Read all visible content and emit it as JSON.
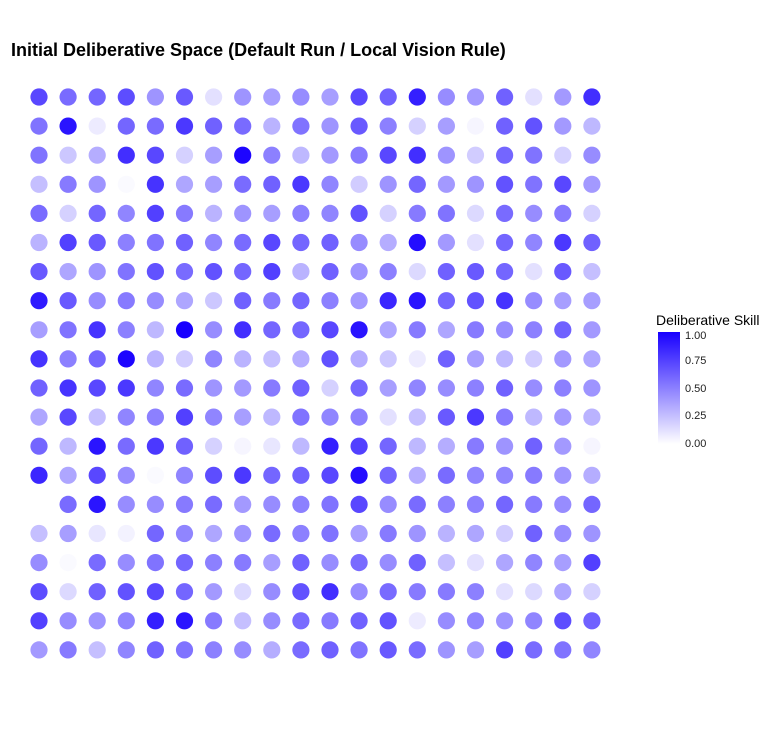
{
  "chart_data": {
    "type": "scatter",
    "title": "Initial Deliberative Space (Default Run / Local Vision Rule)",
    "grid": false,
    "color_scale": {
      "title": "Deliberative Skill",
      "low_color": "#FFFFFF",
      "high_color": "#1800FF",
      "range": [
        0,
        1
      ],
      "ticks": [
        "0.00",
        "0.25",
        "0.50",
        "0.75",
        "1.00"
      ],
      "position": "right"
    },
    "n_cols": 20,
    "n_rows": 20,
    "skill_grid": [
      [
        0.72,
        0.58,
        0.6,
        0.7,
        0.42,
        0.65,
        0.12,
        0.42,
        0.38,
        0.45,
        0.38,
        0.72,
        0.62,
        0.88,
        0.45,
        0.4,
        0.62,
        0.12,
        0.4,
        0.82
      ],
      [
        0.55,
        0.92,
        0.08,
        0.6,
        0.58,
        0.78,
        0.62,
        0.58,
        0.3,
        0.55,
        0.42,
        0.65,
        0.5,
        0.18,
        0.38,
        0.04,
        0.62,
        0.68,
        0.4,
        0.28
      ],
      [
        0.55,
        0.22,
        0.32,
        0.82,
        0.72,
        0.18,
        0.38,
        0.98,
        0.5,
        0.28,
        0.4,
        0.52,
        0.72,
        0.82,
        0.42,
        0.2,
        0.6,
        0.55,
        0.18,
        0.45
      ],
      [
        0.25,
        0.52,
        0.42,
        0.02,
        0.8,
        0.35,
        0.38,
        0.58,
        0.62,
        0.78,
        0.48,
        0.2,
        0.42,
        0.6,
        0.4,
        0.42,
        0.68,
        0.55,
        0.72,
        0.4
      ],
      [
        0.58,
        0.18,
        0.6,
        0.48,
        0.75,
        0.52,
        0.3,
        0.42,
        0.38,
        0.5,
        0.48,
        0.68,
        0.18,
        0.52,
        0.55,
        0.15,
        0.58,
        0.45,
        0.52,
        0.18
      ],
      [
        0.3,
        0.75,
        0.65,
        0.5,
        0.55,
        0.62,
        0.48,
        0.58,
        0.72,
        0.6,
        0.62,
        0.45,
        0.32,
        0.95,
        0.4,
        0.12,
        0.6,
        0.48,
        0.78,
        0.62
      ],
      [
        0.65,
        0.35,
        0.42,
        0.55,
        0.68,
        0.58,
        0.68,
        0.6,
        0.75,
        0.3,
        0.62,
        0.42,
        0.5,
        0.15,
        0.62,
        0.65,
        0.6,
        0.12,
        0.65,
        0.25
      ],
      [
        0.9,
        0.65,
        0.45,
        0.52,
        0.45,
        0.35,
        0.22,
        0.62,
        0.52,
        0.6,
        0.5,
        0.4,
        0.85,
        0.92,
        0.6,
        0.68,
        0.8,
        0.45,
        0.38,
        0.38
      ],
      [
        0.38,
        0.55,
        0.8,
        0.5,
        0.28,
        1.0,
        0.45,
        0.82,
        0.6,
        0.6,
        0.72,
        0.92,
        0.35,
        0.52,
        0.35,
        0.52,
        0.45,
        0.5,
        0.62,
        0.4
      ],
      [
        0.8,
        0.5,
        0.6,
        0.98,
        0.3,
        0.2,
        0.48,
        0.3,
        0.25,
        0.32,
        0.68,
        0.32,
        0.22,
        0.08,
        0.62,
        0.38,
        0.28,
        0.2,
        0.4,
        0.35
      ],
      [
        0.62,
        0.8,
        0.72,
        0.78,
        0.48,
        0.58,
        0.42,
        0.4,
        0.52,
        0.62,
        0.18,
        0.6,
        0.38,
        0.48,
        0.45,
        0.5,
        0.62,
        0.45,
        0.5,
        0.42
      ],
      [
        0.35,
        0.72,
        0.25,
        0.48,
        0.5,
        0.75,
        0.48,
        0.38,
        0.28,
        0.55,
        0.48,
        0.5,
        0.12,
        0.25,
        0.65,
        0.78,
        0.52,
        0.28,
        0.4,
        0.3
      ],
      [
        0.6,
        0.28,
        0.92,
        0.58,
        0.78,
        0.62,
        0.18,
        0.04,
        0.1,
        0.28,
        0.88,
        0.75,
        0.6,
        0.28,
        0.32,
        0.52,
        0.42,
        0.62,
        0.4,
        0.04
      ],
      [
        0.85,
        0.35,
        0.72,
        0.45,
        0.02,
        0.48,
        0.7,
        0.78,
        0.6,
        0.62,
        0.72,
        0.95,
        0.6,
        0.32,
        0.58,
        0.48,
        0.48,
        0.52,
        0.42,
        0.32
      ],
      [
        null,
        0.58,
        0.92,
        0.45,
        0.45,
        0.52,
        0.58,
        0.4,
        0.45,
        0.5,
        0.55,
        0.72,
        0.45,
        0.58,
        0.5,
        0.5,
        0.6,
        0.52,
        0.45,
        0.6
      ],
      [
        0.25,
        0.38,
        0.1,
        0.05,
        0.6,
        0.48,
        0.35,
        0.42,
        0.58,
        0.5,
        0.55,
        0.38,
        0.52,
        0.42,
        0.3,
        0.35,
        0.2,
        0.62,
        0.45,
        0.42
      ],
      [
        0.45,
        0.02,
        0.58,
        0.45,
        0.55,
        0.6,
        0.5,
        0.52,
        0.38,
        0.62,
        0.45,
        0.58,
        0.45,
        0.62,
        0.25,
        0.12,
        0.35,
        0.48,
        0.38,
        0.75
      ],
      [
        0.7,
        0.15,
        0.62,
        0.68,
        0.72,
        0.6,
        0.4,
        0.15,
        0.45,
        0.68,
        0.82,
        0.45,
        0.58,
        0.52,
        0.52,
        0.5,
        0.12,
        0.15,
        0.35,
        0.18
      ],
      [
        0.75,
        0.45,
        0.42,
        0.48,
        0.88,
        0.92,
        0.52,
        0.25,
        0.45,
        0.58,
        0.52,
        0.62,
        0.68,
        0.08,
        0.45,
        0.48,
        0.42,
        0.48,
        0.7,
        0.62
      ],
      [
        0.4,
        0.52,
        0.25,
        0.48,
        0.62,
        0.55,
        0.5,
        0.45,
        0.32,
        0.58,
        0.62,
        0.55,
        0.65,
        0.58,
        0.42,
        0.38,
        0.75,
        0.58,
        0.55,
        0.48
      ]
    ]
  }
}
